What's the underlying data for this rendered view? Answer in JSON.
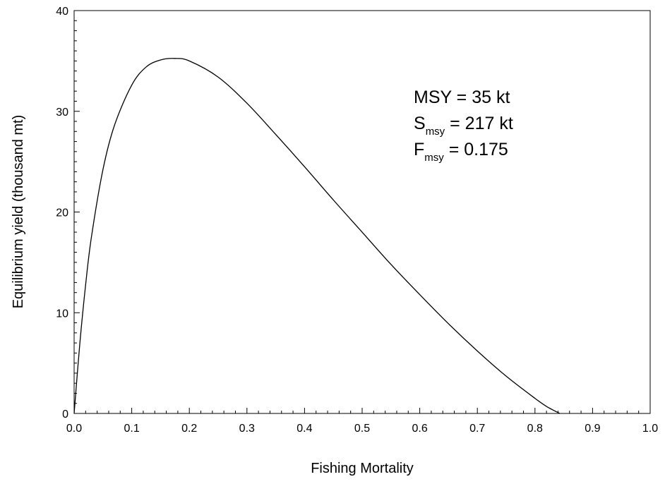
{
  "chart_data": {
    "type": "line",
    "title": "",
    "xlabel": "Fishing Mortality",
    "ylabel": "Equilibrium yield (thousand mt)",
    "xlim": [
      0.0,
      1.0
    ],
    "ylim": [
      0,
      40
    ],
    "x_ticks": [
      "0.0",
      "0.1",
      "0.2",
      "0.3",
      "0.4",
      "0.5",
      "0.6",
      "0.7",
      "0.8",
      "0.9",
      "1.0"
    ],
    "y_ticks": [
      "0",
      "10",
      "20",
      "30",
      "40"
    ],
    "grid": false,
    "series": [
      {
        "x": [
          0.0,
          0.01,
          0.02,
          0.03,
          0.05,
          0.07,
          0.1,
          0.125,
          0.15,
          0.175,
          0.2,
          0.25,
          0.3,
          0.35,
          0.4,
          0.45,
          0.5,
          0.55,
          0.6,
          0.65,
          0.7,
          0.75,
          0.8,
          0.82,
          0.843
        ],
        "y": [
          0.0,
          7.0,
          12.8,
          17.5,
          24.2,
          28.6,
          32.6,
          34.4,
          35.1,
          35.25,
          35.0,
          33.4,
          30.8,
          27.7,
          24.5,
          21.2,
          18.0,
          14.8,
          11.8,
          8.9,
          6.2,
          3.7,
          1.5,
          0.7,
          0.0
        ]
      }
    ],
    "annotation": {
      "msy_text": "MSY = 35 kt",
      "smsy_main": "S",
      "smsy_sub": "msy",
      "smsy_rest": " = 217 kt",
      "fmsy_main": "F",
      "fmsy_sub": "msy",
      "fmsy_rest": " = 0.175"
    },
    "colors": {
      "line": "#000000",
      "axis": "#000000"
    }
  }
}
